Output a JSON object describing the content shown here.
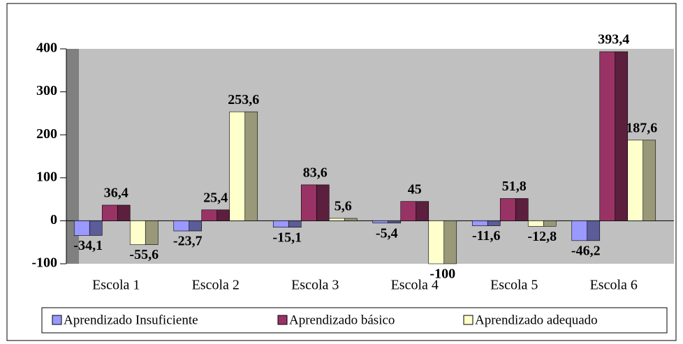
{
  "chart_data": {
    "type": "bar",
    "categories": [
      "Escola 1",
      "Escola 2",
      "Escola 3",
      "Escola 4",
      "Escola 5",
      "Escola 6"
    ],
    "series": [
      {
        "name": "Aprendizado Insuficiente",
        "color": "#9999ff",
        "values": [
          -34.1,
          -23.7,
          -15.1,
          -5.4,
          -11.6,
          -46.2
        ],
        "value_labels": [
          "-34,1",
          "-23,7",
          "-15,1",
          "-5,4",
          "-11,6",
          "-46,2"
        ]
      },
      {
        "name": "Aprendizado básico",
        "color": "#993366",
        "values": [
          36.4,
          25.4,
          83.6,
          45,
          51.8,
          393.4
        ],
        "value_labels": [
          "36,4",
          "25,4",
          "83,6",
          "45",
          "51,8",
          "393,4"
        ]
      },
      {
        "name": "Aprendizado adequado",
        "color": "#ffffcc",
        "values": [
          -55.6,
          253.6,
          5.6,
          -100,
          -12.8,
          187.6
        ],
        "value_labels": [
          "-55,6",
          "253,6",
          "5,6",
          "-100",
          "-12,8",
          "187,6"
        ]
      }
    ],
    "ylim": [
      -100,
      400
    ],
    "yticks": [
      400,
      300,
      200,
      100,
      0,
      -100
    ],
    "grid": false,
    "legend": "bottom"
  }
}
